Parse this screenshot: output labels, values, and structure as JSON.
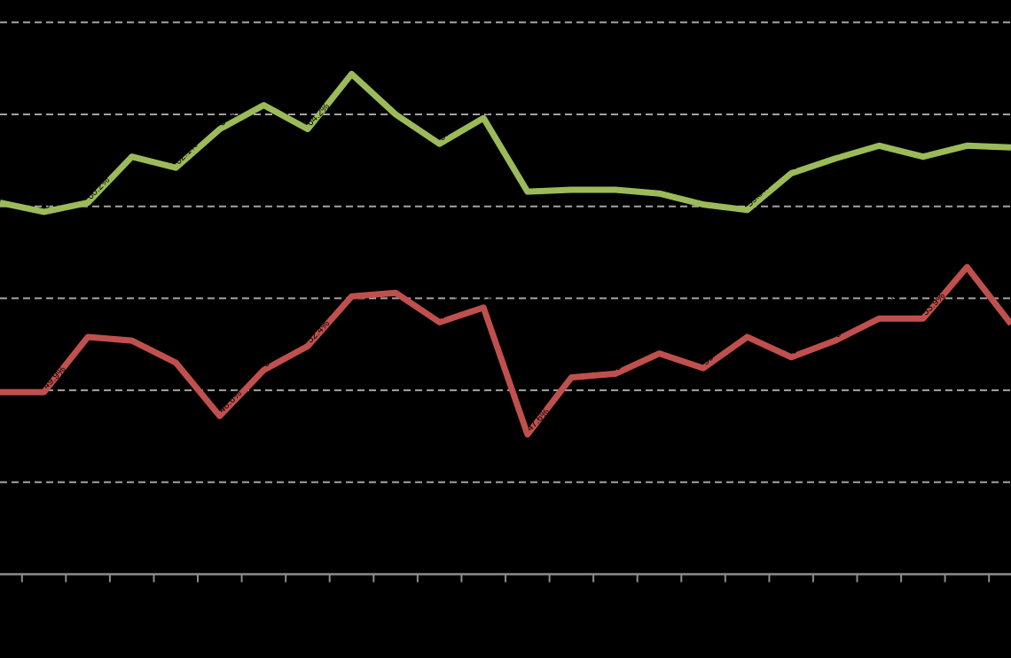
{
  "chart": {
    "background_color": "#000000",
    "title": "",
    "notes": "no visible axis tick labels, legend or title (transparent/black text on transparent background); only gridlines, axis ticks, two data-labelled line series are rendered",
    "colors": {
      "series_green": "#9BBB59",
      "series_red": "#C0504D",
      "gridline": "#A3A3A3",
      "axis": "#8C8C8C",
      "data_label": "#000000"
    }
  },
  "chart_data": {
    "type": "line",
    "x": [
      1,
      2,
      3,
      4,
      5,
      6,
      7,
      8,
      9,
      10,
      11,
      12,
      13,
      14,
      15,
      16,
      17,
      18,
      19,
      20,
      21,
      22,
      23,
      24
    ],
    "categories": [
      "",
      "",
      "",
      "",
      "",
      "",
      "",
      "",
      "",
      "",
      "",
      "",
      "",
      "",
      "",
      "",
      "",
      "",
      "",
      "",
      "",
      "",
      "",
      ""
    ],
    "title": "",
    "xlabel": "",
    "ylabel": "",
    "ylim": [
      40,
      70
    ],
    "gridline_step": 5,
    "gridline_values": [
      45,
      50,
      55,
      60,
      65,
      70
    ],
    "grid": "dashed horizontal",
    "legend_position": "none",
    "x_axis_tick_count": 23,
    "data_labels_shown": true,
    "data_label_format": "0.0%",
    "series": [
      {
        "name": "green-series",
        "color": "#9BBB59",
        "values": [
          60.2,
          59.7,
          60.2,
          62.7,
          62.1,
          64.2,
          65.5,
          64.2,
          67.2,
          65.0,
          63.4,
          64.8,
          60.8,
          60.9,
          60.9,
          60.7,
          60.1,
          59.8,
          61.8,
          62.6,
          63.3,
          62.7,
          63.3,
          63.2
        ],
        "labels": [
          "60.2%",
          "59.7%",
          "60.2%",
          "62.7%",
          "62.1%",
          "64.2%",
          "65.5%",
          "64.2%",
          "67.2%",
          "65.0%",
          "63.4%",
          "64.8%",
          "60.8%",
          "60.9%",
          "60.9%",
          "60.7%",
          "60.1%",
          "59.8%",
          "61.8%",
          "62.6%",
          "63.3%",
          "62.7%",
          "63.3%",
          "63.2%"
        ]
      },
      {
        "name": "red-series",
        "color": "#C0504D",
        "values": [
          49.9,
          49.9,
          52.9,
          52.7,
          51.5,
          48.6,
          51.1,
          52.4,
          55.1,
          55.3,
          53.7,
          54.5,
          47.6,
          50.7,
          50.9,
          52.0,
          51.2,
          52.9,
          51.8,
          52.7,
          53.9,
          53.9,
          56.7,
          53.6
        ],
        "labels": [
          "49.9%",
          "49.9%",
          "52.9%",
          "52.7%",
          "51.5%",
          "48.6%",
          "51.1%",
          "52.4%",
          "55.1%",
          "55.3%",
          "53.7%",
          "54.5%",
          "47.6%",
          "50.7%",
          "50.9%",
          "52.0%",
          "51.2%",
          "52.9%",
          "51.8%",
          "52.7%",
          "53.9%",
          "53.9%",
          "56.7%",
          "53.6%"
        ]
      }
    ]
  }
}
